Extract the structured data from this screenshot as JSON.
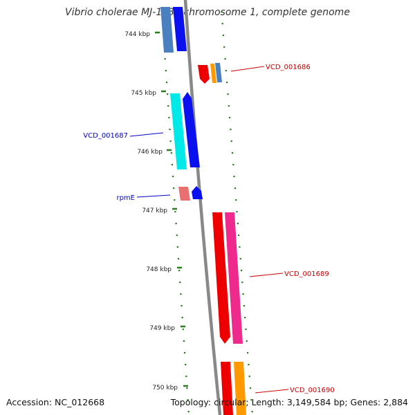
{
  "title": "Vibrio cholerae MJ-1236 chromosome 1, complete genome",
  "footer": {
    "accession": "Accession: NC_012668",
    "summary": "Topology: circular; Length: 3,149,584 bp; Genes: 2,884"
  },
  "ticks": [
    "744 kbp",
    "745 kbp",
    "746 kbp",
    "747 kbp",
    "748 kbp",
    "749 kbp",
    "750 kbp"
  ],
  "gene_labels": [
    {
      "text": "VCD_001686",
      "color": "#cc0000"
    },
    {
      "text": "VCD_001687",
      "color": "#0000cc"
    },
    {
      "text": "rpmE",
      "color": "#0000cc"
    },
    {
      "text": "VCD_001689",
      "color": "#cc0000"
    },
    {
      "text": "VCD_001690",
      "color": "#cc0000"
    }
  ],
  "colors": {
    "backbone": "#888888",
    "tick": "#2a7d1e",
    "steelblue": "#4a80c0",
    "blue": "#0a10ee",
    "cyan": "#00e8e8",
    "red": "#ee0000",
    "orange": "#ff9900",
    "pink": "#ee2a8c",
    "salmon": "#e87070"
  }
}
